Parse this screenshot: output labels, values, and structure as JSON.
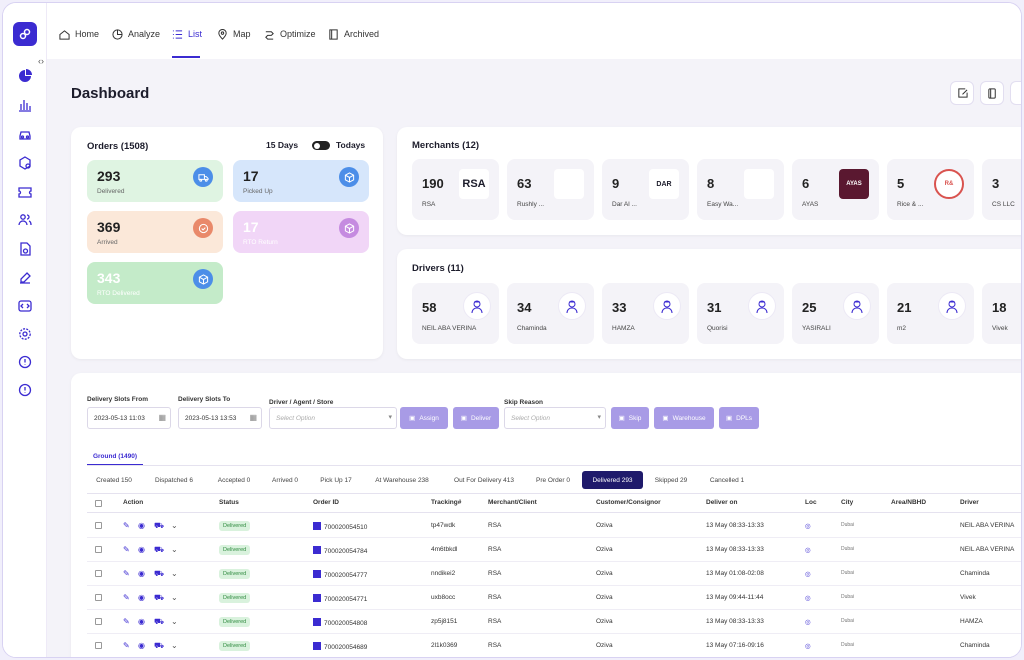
{
  "nav": {
    "items": [
      {
        "label": "Home",
        "icon": "home-icon"
      },
      {
        "label": "Analyze",
        "icon": "analyze-icon"
      },
      {
        "label": "List",
        "icon": "list-icon"
      },
      {
        "label": "Map",
        "icon": "map-pin-icon"
      },
      {
        "label": "Optimize",
        "icon": "route-icon"
      },
      {
        "label": "Archived",
        "icon": "archive-icon"
      }
    ],
    "active": "List"
  },
  "page": {
    "title": "Dashboard"
  },
  "orders": {
    "title": "Orders (1508)",
    "range_label": "15 Days",
    "toggle_label": "Todays",
    "stats": [
      {
        "value": "293",
        "label": "Delivered",
        "bg": "#dff4e2",
        "icon_bg": "#4c8ee8"
      },
      {
        "value": "17",
        "label": "Picked Up",
        "bg": "#d6e6fb",
        "icon_bg": "#4c8ee8"
      },
      {
        "value": "369",
        "label": "Arrived",
        "bg": "#fbe8d9",
        "icon_bg": "#e9896a"
      },
      {
        "value": "17",
        "label": "RTO Return",
        "bg": "#f1d6f7",
        "icon_bg": "#c58be0"
      },
      {
        "value": "343",
        "label": "RTO Delivered",
        "bg": "#c4ebc9",
        "icon_bg": "#4c8ee8"
      }
    ]
  },
  "merchants": {
    "title": "Merchants (12)",
    "items": [
      {
        "count": "190",
        "name": "RSA",
        "logo": "RSA"
      },
      {
        "count": "63",
        "name": "Rushly ...",
        "logo": ""
      },
      {
        "count": "9",
        "name": "Dar Al ...",
        "logo": "DAR"
      },
      {
        "count": "8",
        "name": "Easy Wa...",
        "logo": ""
      },
      {
        "count": "6",
        "name": "AYAS",
        "logo": "AYAS"
      },
      {
        "count": "5",
        "name": "Rice & ...",
        "logo": "R&"
      },
      {
        "count": "3",
        "name": "CS LLC",
        "logo": ""
      }
    ]
  },
  "drivers": {
    "title": "Drivers (11)",
    "items": [
      {
        "count": "58",
        "name": "NEIL ABA VERINA"
      },
      {
        "count": "34",
        "name": "Chaminda"
      },
      {
        "count": "33",
        "name": "HAMZA"
      },
      {
        "count": "31",
        "name": "Quorisi"
      },
      {
        "count": "25",
        "name": "YASIRALI"
      },
      {
        "count": "21",
        "name": "m2"
      },
      {
        "count": "18",
        "name": "Vivek"
      }
    ]
  },
  "filters": {
    "slots_from_label": "Delivery Slots From",
    "slots_from_value": "2023-05-13 11:03",
    "slots_to_label": "Delivery Slots To",
    "slots_to_value": "2023-05-13 13:53",
    "driver_label": "Driver / Agent / Store",
    "driver_placeholder": "Select Option",
    "skip_label": "Skip Reason",
    "skip_placeholder": "Select Option",
    "buttons": [
      "Assign",
      "Deliver",
      "Skip",
      "Warehouse",
      "DPLs"
    ]
  },
  "ground_tab": "Ground (1490)",
  "status_tabs": [
    "Created 150",
    "Dispatched 6",
    "Accepted 0",
    "Arrived 0",
    "Pick Up 17",
    "At Warehouse 238",
    "Out For Delivery 413",
    "Pre Order 0",
    "Delivered 293",
    "Skipped 29",
    "Cancelled 1"
  ],
  "active_status_tab": "Delivered 293",
  "table": {
    "headers": [
      "Action",
      "Status",
      "Order ID",
      "Tracking#",
      "Merchant/Client",
      "Customer/Consignor",
      "Deliver on",
      "Loc",
      "City",
      "Area/NBHD",
      "Driver"
    ],
    "rows": [
      {
        "status": "Delivered",
        "order_id": "700020054510",
        "tracking": "tp47wdk",
        "merchant": "RSA",
        "customer": "Oziva",
        "deliver_on": "13 May 08:33-13:33",
        "city": "Dubai",
        "area": "",
        "driver": "NEIL ABA VERINA"
      },
      {
        "status": "Delivered",
        "order_id": "700020054784",
        "tracking": "4m6tbkdl",
        "merchant": "RSA",
        "customer": "Oziva",
        "deliver_on": "13 May 08:33-13:33",
        "city": "Dubai",
        "area": "",
        "driver": "NEIL ABA VERINA"
      },
      {
        "status": "Delivered",
        "order_id": "700020054777",
        "tracking": "nndikei2",
        "merchant": "RSA",
        "customer": "Oziva",
        "deliver_on": "13 May 01:08-02:08",
        "city": "Dubai",
        "area": "",
        "driver": "Chaminda"
      },
      {
        "status": "Delivered",
        "order_id": "700020054771",
        "tracking": "uxb8occ",
        "merchant": "RSA",
        "customer": "Oziva",
        "deliver_on": "13 May 09:44-11:44",
        "city": "Dubai",
        "area": "",
        "driver": "Vivek"
      },
      {
        "status": "Delivered",
        "order_id": "700020054808",
        "tracking": "zp5j8151",
        "merchant": "RSA",
        "customer": "Oziva",
        "deliver_on": "13 May 08:33-13:33",
        "city": "Dubai",
        "area": "",
        "driver": "HAMZA"
      },
      {
        "status": "Delivered",
        "order_id": "700020054689",
        "tracking": "2l1k0369",
        "merchant": "RSA",
        "customer": "Oziva",
        "deliver_on": "13 May 07:16-09:16",
        "city": "Dubai",
        "area": "",
        "driver": "Chaminda"
      }
    ]
  },
  "colors": {
    "accent": "#3b2bd1",
    "accent_light": "#a89be6",
    "active_tab": "#1f1a6b",
    "badge_bg": "#d9f2dd",
    "badge_text": "#2f8a3f"
  }
}
